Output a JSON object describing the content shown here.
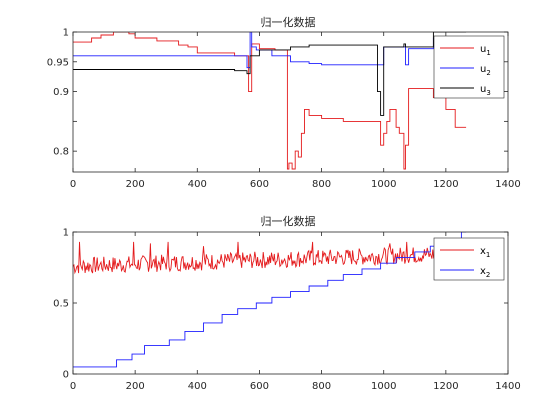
{
  "colors": {
    "red": "#e41a1c",
    "blue": "#1f1fff",
    "black": "#000000",
    "axis": "#262626"
  },
  "chart_data": [
    {
      "type": "line",
      "title": "归一化数据",
      "xlim": [
        0,
        1400
      ],
      "ylim": [
        0.765,
        1.0
      ],
      "xticks": [
        0,
        200,
        400,
        600,
        800,
        1000,
        1200,
        1400
      ],
      "yticks": [
        0.8,
        0.85,
        0.9,
        0.95,
        1
      ],
      "ytick_labels": [
        "0.8",
        "",
        "0.9",
        "0.95",
        "1"
      ],
      "legend_position": "top-right",
      "series": [
        {
          "name": "u1",
          "label_main": "u",
          "label_sub": "1",
          "color": "#e41a1c",
          "x": [
            0,
            60,
            60,
            90,
            90,
            130,
            130,
            180,
            180,
            200,
            200,
            270,
            270,
            340,
            340,
            370,
            370,
            400,
            400,
            520,
            520,
            565,
            565,
            575,
            575,
            600,
            600,
            650,
            650,
            690,
            690,
            695,
            695,
            705,
            705,
            715,
            715,
            725,
            725,
            735,
            735,
            745,
            745,
            760,
            760,
            800,
            800,
            870,
            870,
            970,
            970,
            990,
            990,
            1000,
            1000,
            1010,
            1010,
            1020,
            1020,
            1040,
            1040,
            1050,
            1050,
            1065,
            1065,
            1070,
            1070,
            1080,
            1080,
            1160,
            1160,
            1200,
            1200,
            1230,
            1230,
            1265
          ],
          "y": [
            0.983,
            0.983,
            0.99,
            0.99,
            0.995,
            0.995,
            1.0,
            1.0,
            0.997,
            0.997,
            0.99,
            0.99,
            0.985,
            0.985,
            0.978,
            0.978,
            0.975,
            0.975,
            0.965,
            0.965,
            0.96,
            0.96,
            0.9,
            0.9,
            0.98,
            0.98,
            0.972,
            0.972,
            0.97,
            0.97,
            0.77,
            0.77,
            0.78,
            0.78,
            0.77,
            0.77,
            0.8,
            0.8,
            0.79,
            0.79,
            0.83,
            0.83,
            0.87,
            0.87,
            0.86,
            0.86,
            0.855,
            0.855,
            0.85,
            0.85,
            0.85,
            0.85,
            0.81,
            0.81,
            0.83,
            0.83,
            0.85,
            0.85,
            0.87,
            0.87,
            0.84,
            0.84,
            0.83,
            0.83,
            0.77,
            0.77,
            0.81,
            0.81,
            0.905,
            0.905,
            0.89,
            0.89,
            0.87,
            0.87,
            0.84,
            0.84
          ]
        },
        {
          "name": "u2",
          "label_main": "u",
          "label_sub": "2",
          "color": "#1f1fff",
          "x": [
            0,
            560,
            560,
            570,
            570,
            575,
            575,
            590,
            590,
            640,
            640,
            700,
            700,
            760,
            760,
            800,
            800,
            1000,
            1000,
            1070,
            1070,
            1080,
            1080,
            1160,
            1160,
            1265
          ],
          "y": [
            0.96,
            0.96,
            0.94,
            0.94,
            1.0,
            1.0,
            0.975,
            0.975,
            0.97,
            0.97,
            0.96,
            0.96,
            0.95,
            0.95,
            0.947,
            0.947,
            0.945,
            0.945,
            0.975,
            0.975,
            0.945,
            0.945,
            0.972,
            0.972,
            0.99,
            0.99
          ]
        },
        {
          "name": "u3",
          "label_main": "u",
          "label_sub": "3",
          "color": "#000000",
          "x": [
            0,
            520,
            520,
            560,
            560,
            570,
            570,
            600,
            600,
            700,
            700,
            760,
            760,
            980,
            980,
            990,
            990,
            1000,
            1000,
            1065,
            1065,
            1070,
            1070,
            1160,
            1160,
            1265
          ],
          "y": [
            0.937,
            0.937,
            0.935,
            0.935,
            0.93,
            0.93,
            0.96,
            0.96,
            0.97,
            0.97,
            0.975,
            0.975,
            0.978,
            0.978,
            0.9,
            0.9,
            0.86,
            0.86,
            0.975,
            0.975,
            0.98,
            0.98,
            0.975,
            0.975,
            1.0,
            1.0
          ]
        }
      ]
    },
    {
      "type": "line",
      "title": "归一化数据",
      "xlim": [
        0,
        1400
      ],
      "ylim": [
        0,
        1.0
      ],
      "xticks": [
        0,
        200,
        400,
        600,
        800,
        1000,
        1200,
        1400
      ],
      "yticks": [
        0,
        0.5,
        1
      ],
      "ytick_labels": [
        "0",
        "0.5",
        "1"
      ],
      "legend_position": "top-right",
      "series": [
        {
          "name": "x1",
          "label_main": "x",
          "label_sub": "1",
          "color": "#e41a1c",
          "noise": {
            "start": 0,
            "end": 1265,
            "step": 3,
            "base_start": 0.76,
            "base_end": 0.85,
            "amplitude": 0.06,
            "spikes": [
              [
                20,
                0.93
              ],
              [
                195,
                0.93
              ],
              [
                250,
                0.92
              ],
              [
                305,
                0.93
              ],
              [
                420,
                0.9
              ],
              [
                530,
                0.93
              ],
              [
                770,
                0.93
              ],
              [
                1020,
                0.92
              ],
              [
                1075,
                0.93
              ],
              [
                1150,
                0.85
              ]
            ]
          }
        },
        {
          "name": "x2",
          "label_main": "x",
          "label_sub": "2",
          "color": "#1f1fff",
          "x": [
            0,
            140,
            140,
            190,
            190,
            230,
            230,
            310,
            310,
            360,
            360,
            420,
            420,
            480,
            480,
            530,
            530,
            590,
            590,
            640,
            640,
            700,
            700,
            760,
            760,
            820,
            820,
            870,
            870,
            930,
            930,
            990,
            990,
            1040,
            1040,
            1100,
            1100,
            1150,
            1150,
            1200,
            1200,
            1250,
            1250,
            1265
          ],
          "y": [
            0.05,
            0.05,
            0.1,
            0.1,
            0.14,
            0.14,
            0.2,
            0.2,
            0.24,
            0.24,
            0.3,
            0.3,
            0.36,
            0.36,
            0.42,
            0.42,
            0.46,
            0.46,
            0.5,
            0.5,
            0.54,
            0.54,
            0.58,
            0.58,
            0.62,
            0.62,
            0.66,
            0.66,
            0.7,
            0.7,
            0.74,
            0.74,
            0.78,
            0.78,
            0.82,
            0.82,
            0.86,
            0.86,
            0.9,
            0.9,
            0.95,
            0.95,
            1.0,
            1.0
          ]
        }
      ]
    }
  ]
}
